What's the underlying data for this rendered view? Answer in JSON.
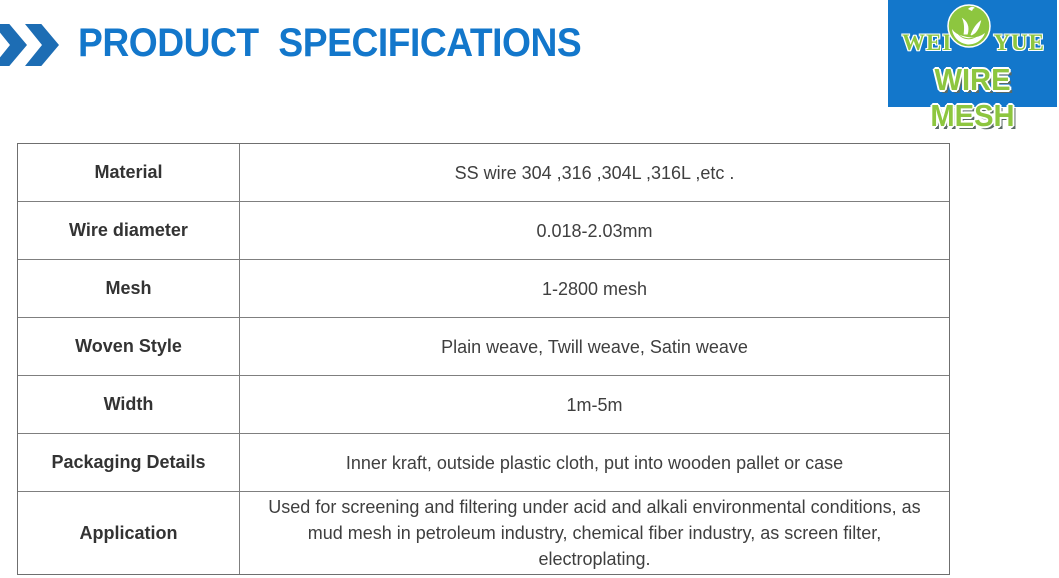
{
  "header": {
    "title": "PRODUCT  SPECIFICATIONS"
  },
  "logo": {
    "word_left": "WEI",
    "word_right": "YUE",
    "subtitle": "WIRE MESH"
  },
  "colors": {
    "accent_blue": "#1377cb",
    "chevron_blue": "#1d6db4",
    "logo_background": "#1377cb",
    "logo_green": "#8dc63f",
    "table_border": "#7f7f7f",
    "text_dark": "#3a3a3a"
  },
  "table": {
    "rows": [
      {
        "label": "Material",
        "value": "SS wire 304 ,316 ,304L ,316L ,etc ."
      },
      {
        "label": "Wire diameter",
        "value": "0.018-2.03mm"
      },
      {
        "label": "Mesh",
        "value": "1-2800 mesh"
      },
      {
        "label": "Woven Style",
        "value": "Plain weave, Twill weave, Satin weave"
      },
      {
        "label": "Width",
        "value": "1m-5m"
      },
      {
        "label": "Packaging Details",
        "value": "Inner kraft, outside plastic cloth, put into wooden pallet or case"
      },
      {
        "label": "Application",
        "value": "Used for screening and filtering under acid and alkali environmental conditions, as mud mesh in petroleum industry, chemical fiber industry, as screen filter, electroplating."
      }
    ]
  }
}
